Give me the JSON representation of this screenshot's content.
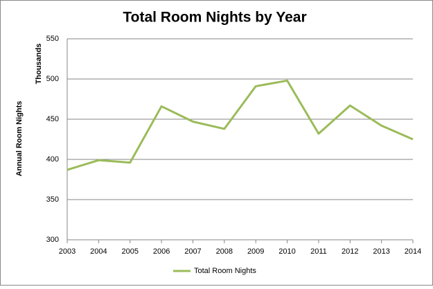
{
  "chart_data": {
    "type": "line",
    "title": "Total Room Nights by Year",
    "y_label": "Annual Room Nights",
    "y_unit_label": "Thousands",
    "x": [
      2003,
      2004,
      2005,
      2006,
      2007,
      2008,
      2009,
      2010,
      2011,
      2012,
      2013,
      2014
    ],
    "xlim": [
      2003,
      2014
    ],
    "xticks": [
      2003,
      2004,
      2005,
      2006,
      2007,
      2008,
      2009,
      2010,
      2011,
      2012,
      2013,
      2014
    ],
    "series": [
      {
        "name": "Total Room Nights",
        "color": "#9bbb59",
        "values": [
          387,
          399,
          396,
          466,
          447,
          438,
          491,
          498,
          432,
          467,
          442,
          425
        ]
      }
    ],
    "ylim": [
      300,
      550
    ],
    "yticks": [
      300,
      350,
      400,
      450,
      500,
      550
    ],
    "grid": true,
    "legend": "bottom"
  }
}
